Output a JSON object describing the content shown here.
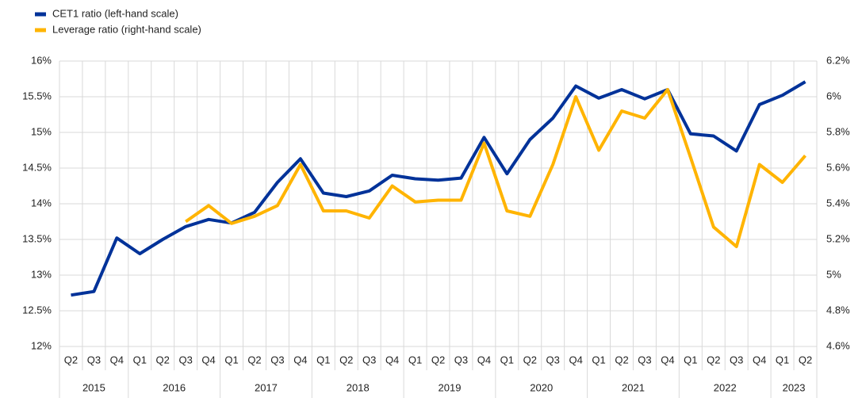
{
  "chart_data": {
    "type": "line",
    "categories": [
      "Q2",
      "Q3",
      "Q4",
      "Q1",
      "Q2",
      "Q3",
      "Q4",
      "Q1",
      "Q2",
      "Q3",
      "Q4",
      "Q1",
      "Q2",
      "Q3",
      "Q4",
      "Q1",
      "Q2",
      "Q3",
      "Q4",
      "Q1",
      "Q2",
      "Q3",
      "Q4",
      "Q1",
      "Q2",
      "Q3",
      "Q4",
      "Q1",
      "Q2",
      "Q3",
      "Q4",
      "Q1",
      "Q2"
    ],
    "year_labels": [
      "2015",
      null,
      null,
      "2016",
      null,
      null,
      null,
      "2017",
      null,
      null,
      null,
      "2018",
      null,
      null,
      null,
      "2019",
      null,
      null,
      null,
      "2020",
      null,
      null,
      null,
      "2021",
      null,
      null,
      null,
      "2022",
      null,
      null,
      null,
      "2023",
      null
    ],
    "series": [
      {
        "name": "CET1 ratio (left-hand scale)",
        "color": "#003299",
        "axis": "y",
        "values": [
          12.72,
          12.77,
          13.52,
          13.3,
          13.5,
          13.68,
          13.78,
          13.73,
          13.88,
          14.3,
          14.63,
          14.15,
          14.1,
          14.18,
          14.4,
          14.35,
          14.33,
          14.36,
          14.93,
          14.42,
          14.9,
          15.2,
          15.65,
          15.48,
          15.6,
          15.47,
          15.6,
          14.98,
          14.95,
          14.74,
          15.39,
          15.52,
          15.71
        ]
      },
      {
        "name": "Leverage ratio (right-hand scale)",
        "color": "#ffb400",
        "axis": "y2",
        "values": [
          null,
          null,
          null,
          null,
          null,
          5.3,
          5.39,
          5.29,
          5.33,
          5.39,
          5.62,
          5.36,
          5.36,
          5.32,
          5.5,
          5.41,
          5.42,
          5.42,
          5.74,
          5.36,
          5.33,
          5.62,
          6.0,
          5.7,
          5.92,
          5.88,
          6.04,
          5.66,
          5.27,
          5.16,
          5.62,
          5.52,
          5.67
        ]
      }
    ],
    "ylim": [
      12,
      16
    ],
    "yticks": [
      {
        "value": 12,
        "label": "12%"
      },
      {
        "value": 12.5,
        "label": "12.5%"
      },
      {
        "value": 13,
        "label": "13%"
      },
      {
        "value": 13.5,
        "label": "13.5%"
      },
      {
        "value": 14,
        "label": "14%"
      },
      {
        "value": 14.5,
        "label": "14.5%"
      },
      {
        "value": 15,
        "label": "15%"
      },
      {
        "value": 15.5,
        "label": "15.5%"
      },
      {
        "value": 16,
        "label": "16%"
      }
    ],
    "y2lim": [
      4.6,
      6.2
    ],
    "y2ticks": [
      {
        "value": 4.6,
        "label": "4.6%"
      },
      {
        "value": 4.8,
        "label": "4.8%"
      },
      {
        "value": 5,
        "label": "5%"
      },
      {
        "value": 5.2,
        "label": "5.2%"
      },
      {
        "value": 5.4,
        "label": "5.4%"
      },
      {
        "value": 5.6,
        "label": "5.6%"
      },
      {
        "value": 5.8,
        "label": "5.8%"
      },
      {
        "value": 6,
        "label": "6%"
      },
      {
        "value": 6.2,
        "label": "6.2%"
      }
    ],
    "grid": true,
    "legend": "top-left"
  }
}
